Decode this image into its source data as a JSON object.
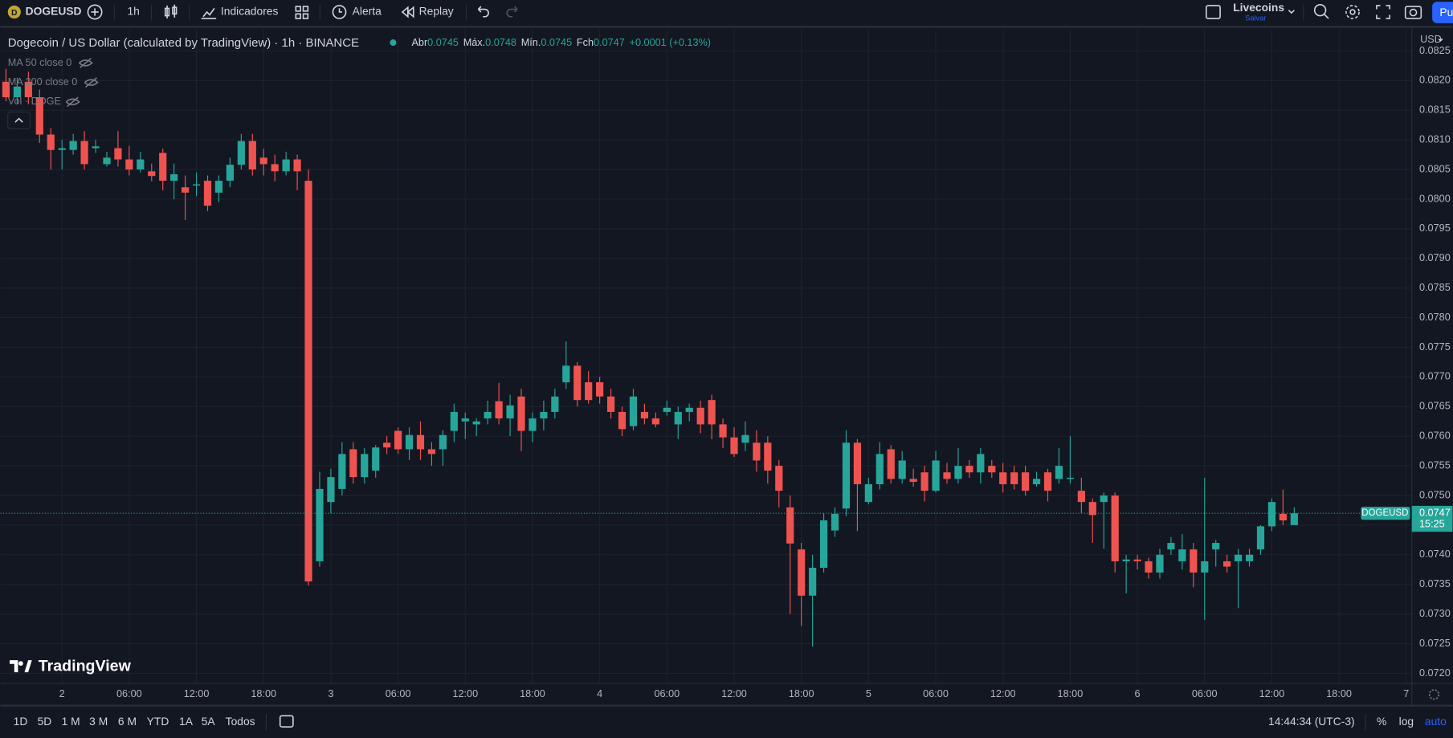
{
  "toolbar": {
    "symbol": "DOGEUSD",
    "interval": "1h",
    "indicators": "Indicadores",
    "alert": "Alerta",
    "replay": "Replay",
    "layout_name": "Livecoins",
    "save": "Salvar",
    "publish": "Pu"
  },
  "legend": {
    "title": "Dogecoin / US Dollar (calculated by TradingView) · 1h · BINANCE",
    "open_label": "Abr",
    "open": "0.0745",
    "high_label": "Máx.",
    "high": "0.0748",
    "low_label": "Mín.",
    "low": "0.0745",
    "close_label": "Fch",
    "close": "0.0747",
    "change": "+0.0001 (+0.13%)",
    "studies": [
      "MA 50 close 0",
      "MA 200 close 0",
      "Vol · DOGE"
    ]
  },
  "currency": "USD",
  "logo": "TradingView",
  "bottom_bar": {
    "ranges": [
      "1D",
      "5D",
      "1 M",
      "3 M",
      "6 M",
      "YTD",
      "1A",
      "5A",
      "Todos"
    ],
    "clock": "14:44:34 (UTC-3)",
    "percent": "%",
    "log": "log",
    "auto": "auto"
  },
  "chart_data": {
    "type": "candlestick",
    "up_color": "#26a69a",
    "down_color": "#ef5350",
    "grid": true,
    "candles": [
      [
        0.08198,
        0.0822,
        0.08165,
        0.08172
      ],
      [
        0.08172,
        0.08205,
        0.0816,
        0.0819
      ],
      [
        0.08198,
        0.08215,
        0.0816,
        0.08172
      ],
      [
        0.08172,
        0.08185,
        0.08095,
        0.08109
      ],
      [
        0.08109,
        0.0812,
        0.0805,
        0.08083
      ],
      [
        0.08083,
        0.081,
        0.0805,
        0.08086
      ],
      [
        0.08083,
        0.0811,
        0.08075,
        0.08098
      ],
      [
        0.08098,
        0.08115,
        0.0805,
        0.08059
      ],
      [
        0.08086,
        0.081,
        0.08078,
        0.08089
      ],
      [
        0.08059,
        0.0808,
        0.08055,
        0.0807
      ],
      [
        0.08086,
        0.08115,
        0.08055,
        0.08067
      ],
      [
        0.08067,
        0.0809,
        0.0804,
        0.0805
      ],
      [
        0.0805,
        0.0808,
        0.08045,
        0.08067
      ],
      [
        0.08047,
        0.0806,
        0.0803,
        0.08039
      ],
      [
        0.08078,
        0.08085,
        0.08015,
        0.08031
      ],
      [
        0.08031,
        0.0806,
        0.08,
        0.08042
      ],
      [
        0.0802,
        0.0804,
        0.07965,
        0.08011
      ],
      [
        0.08023,
        0.08045,
        0.08005,
        0.08025
      ],
      [
        0.08031,
        0.0804,
        0.0798,
        0.07989
      ],
      [
        0.08011,
        0.0804,
        0.07995,
        0.08031
      ],
      [
        0.08031,
        0.0807,
        0.0802,
        0.08058
      ],
      [
        0.08058,
        0.0811,
        0.0805,
        0.08098
      ],
      [
        0.08098,
        0.0811,
        0.0804,
        0.0805
      ],
      [
        0.0807,
        0.08085,
        0.0804,
        0.08059
      ],
      [
        0.08059,
        0.08075,
        0.0803,
        0.08047
      ],
      [
        0.08047,
        0.0808,
        0.0804,
        0.08067
      ],
      [
        0.08067,
        0.08075,
        0.08015,
        0.08047
      ],
      [
        0.08031,
        0.0805,
        0.07348,
        0.07355
      ],
      [
        0.07389,
        0.0754,
        0.0738,
        0.07511
      ],
      [
        0.07489,
        0.07545,
        0.0747,
        0.07531
      ],
      [
        0.07511,
        0.0759,
        0.075,
        0.0757
      ],
      [
        0.07578,
        0.0759,
        0.0752,
        0.07531
      ],
      [
        0.07531,
        0.0758,
        0.0752,
        0.0757
      ],
      [
        0.07542,
        0.07585,
        0.0753,
        0.07581
      ],
      [
        0.07589,
        0.076,
        0.0757,
        0.07581
      ],
      [
        0.07609,
        0.07615,
        0.0757,
        0.07578
      ],
      [
        0.07578,
        0.07615,
        0.0756,
        0.07602
      ],
      [
        0.07602,
        0.07625,
        0.0756,
        0.07578
      ],
      [
        0.07578,
        0.0759,
        0.0755,
        0.0757
      ],
      [
        0.07578,
        0.0761,
        0.0755,
        0.07602
      ],
      [
        0.07609,
        0.07655,
        0.0759,
        0.07641
      ],
      [
        0.07625,
        0.0764,
        0.07595,
        0.0763
      ],
      [
        0.0762,
        0.0763,
        0.076,
        0.07625
      ],
      [
        0.0763,
        0.0766,
        0.0762,
        0.07641
      ],
      [
        0.07659,
        0.0769,
        0.0762,
        0.0763
      ],
      [
        0.0763,
        0.0767,
        0.076,
        0.07652
      ],
      [
        0.07667,
        0.0768,
        0.07575,
        0.07609
      ],
      [
        0.07609,
        0.0764,
        0.0759,
        0.0763
      ],
      [
        0.0763,
        0.0766,
        0.0761,
        0.07641
      ],
      [
        0.07641,
        0.0768,
        0.0763,
        0.07667
      ],
      [
        0.07691,
        0.0776,
        0.0768,
        0.07719
      ],
      [
        0.07719,
        0.07725,
        0.0765,
        0.07661
      ],
      [
        0.07691,
        0.0771,
        0.07655,
        0.07661
      ],
      [
        0.07691,
        0.077,
        0.07655,
        0.07667
      ],
      [
        0.07667,
        0.0768,
        0.0763,
        0.07641
      ],
      [
        0.07641,
        0.0765,
        0.076,
        0.07612
      ],
      [
        0.07617,
        0.0768,
        0.0761,
        0.07667
      ],
      [
        0.07641,
        0.07655,
        0.0762,
        0.0763
      ],
      [
        0.0763,
        0.0764,
        0.07615,
        0.0762
      ],
      [
        0.07641,
        0.0766,
        0.07635,
        0.07648
      ],
      [
        0.0762,
        0.0765,
        0.07595,
        0.07641
      ],
      [
        0.07641,
        0.07655,
        0.07625,
        0.07648
      ],
      [
        0.07648,
        0.0766,
        0.07605,
        0.0762
      ],
      [
        0.07661,
        0.0767,
        0.07595,
        0.0762
      ],
      [
        0.0762,
        0.0763,
        0.0758,
        0.07598
      ],
      [
        0.07598,
        0.07615,
        0.07565,
        0.0757
      ],
      [
        0.07589,
        0.07625,
        0.07575,
        0.07602
      ],
      [
        0.07589,
        0.0761,
        0.0754,
        0.07559
      ],
      [
        0.07589,
        0.076,
        0.0752,
        0.07542
      ],
      [
        0.0755,
        0.0756,
        0.0748,
        0.07508
      ],
      [
        0.0748,
        0.075,
        0.073,
        0.07419
      ],
      [
        0.07409,
        0.0742,
        0.0728,
        0.07331
      ],
      [
        0.07331,
        0.074,
        0.07245,
        0.07378
      ],
      [
        0.07378,
        0.0747,
        0.0737,
        0.07458
      ],
      [
        0.07441,
        0.0748,
        0.0743,
        0.07469
      ],
      [
        0.07478,
        0.0761,
        0.07465,
        0.07589
      ],
      [
        0.07589,
        0.07595,
        0.0744,
        0.07519
      ],
      [
        0.07489,
        0.0753,
        0.07485,
        0.07519
      ],
      [
        0.07519,
        0.0759,
        0.0751,
        0.0757
      ],
      [
        0.07578,
        0.07585,
        0.0752,
        0.07528
      ],
      [
        0.07528,
        0.07575,
        0.0752,
        0.07559
      ],
      [
        0.07528,
        0.07545,
        0.07515,
        0.07523
      ],
      [
        0.07539,
        0.0755,
        0.0749,
        0.07508
      ],
      [
        0.07508,
        0.07575,
        0.07505,
        0.07559
      ],
      [
        0.07539,
        0.07555,
        0.0752,
        0.07528
      ],
      [
        0.07528,
        0.0758,
        0.0752,
        0.0755
      ],
      [
        0.0755,
        0.0756,
        0.0753,
        0.07539
      ],
      [
        0.07539,
        0.0758,
        0.0752,
        0.0757
      ],
      [
        0.0755,
        0.0756,
        0.0753,
        0.07539
      ],
      [
        0.07539,
        0.07555,
        0.07505,
        0.07519
      ],
      [
        0.07539,
        0.0755,
        0.0751,
        0.07519
      ],
      [
        0.07539,
        0.0755,
        0.075,
        0.07508
      ],
      [
        0.07519,
        0.0754,
        0.07515,
        0.07528
      ],
      [
        0.07539,
        0.07545,
        0.0749,
        0.07508
      ],
      [
        0.07528,
        0.0758,
        0.0752,
        0.0755
      ],
      [
        0.07528,
        0.076,
        0.0752,
        0.0753
      ],
      [
        0.07508,
        0.0753,
        0.0747,
        0.07489
      ],
      [
        0.07489,
        0.07495,
        0.0742,
        0.07467
      ],
      [
        0.07489,
        0.07505,
        0.0741,
        0.075
      ],
      [
        0.075,
        0.07505,
        0.0737,
        0.07389
      ],
      [
        0.07389,
        0.074,
        0.07335,
        0.07392
      ],
      [
        0.07392,
        0.074,
        0.07375,
        0.07389
      ],
      [
        0.07389,
        0.07395,
        0.0736,
        0.0737
      ],
      [
        0.0737,
        0.0741,
        0.0736,
        0.074
      ],
      [
        0.07409,
        0.0743,
        0.074,
        0.0742
      ],
      [
        0.07389,
        0.07435,
        0.07375,
        0.07409
      ],
      [
        0.07409,
        0.0742,
        0.07345,
        0.0737
      ],
      [
        0.0737,
        0.0753,
        0.0729,
        0.07389
      ],
      [
        0.07409,
        0.07425,
        0.0738,
        0.0742
      ],
      [
        0.07389,
        0.074,
        0.0737,
        0.0738
      ],
      [
        0.07389,
        0.0741,
        0.0731,
        0.074
      ],
      [
        0.07389,
        0.0741,
        0.0738,
        0.074
      ],
      [
        0.07409,
        0.0745,
        0.074,
        0.07448
      ],
      [
        0.07448,
        0.07495,
        0.0744,
        0.07489
      ],
      [
        0.07469,
        0.0751,
        0.0745,
        0.07458
      ],
      [
        0.0745,
        0.0748,
        0.0745,
        0.0747
      ]
    ],
    "xlim": [
      -0.5,
      125.5
    ],
    "xticks": [
      {
        "value": 5,
        "label": "2"
      },
      {
        "value": 11,
        "label": "06:00"
      },
      {
        "value": 17,
        "label": "12:00"
      },
      {
        "value": 23,
        "label": "18:00"
      },
      {
        "value": 29,
        "label": "3"
      },
      {
        "value": 35,
        "label": "06:00"
      },
      {
        "value": 41,
        "label": "12:00"
      },
      {
        "value": 47,
        "label": "18:00"
      },
      {
        "value": 53,
        "label": "4"
      },
      {
        "value": 59,
        "label": "06:00"
      },
      {
        "value": 65,
        "label": "12:00"
      },
      {
        "value": 71,
        "label": "18:00"
      },
      {
        "value": 77,
        "label": "5"
      },
      {
        "value": 83,
        "label": "06:00"
      },
      {
        "value": 89,
        "label": "12:00"
      },
      {
        "value": 95,
        "label": "18:00"
      },
      {
        "value": 101,
        "label": "6"
      },
      {
        "value": 107,
        "label": "06:00"
      },
      {
        "value": 113,
        "label": "12:00"
      },
      {
        "value": 119,
        "label": "18:00"
      },
      {
        "value": 125,
        "label": "7"
      }
    ],
    "ylim": [
      0.07183,
      0.08286
    ],
    "yticks": [
      {
        "value": 0.072,
        "label": "0.0720"
      },
      0.0725,
      {
        "value": 0.073,
        "label": "0.0730"
      },
      0.0735,
      {
        "value": 0.074,
        "label": "0.0740"
      },
      0.0745,
      {
        "value": 0.075,
        "label": "0.0750"
      },
      0.0755,
      {
        "value": 0.076,
        "label": "0.0760"
      },
      0.0765,
      {
        "value": 0.077,
        "label": "0.0770"
      },
      0.0775,
      {
        "value": 0.078,
        "label": "0.0780"
      },
      0.0785,
      {
        "value": 0.079,
        "label": "0.0790"
      },
      0.0795,
      {
        "value": 0.08,
        "label": "0.0800"
      },
      0.0805,
      {
        "value": 0.081,
        "label": "0.0810"
      },
      0.0815,
      {
        "value": 0.082,
        "label": "0.0820"
      },
      0.0825
    ],
    "price_line": {
      "name": "DOGEUSD",
      "value": 0.0747,
      "countdown": "15:25"
    }
  }
}
